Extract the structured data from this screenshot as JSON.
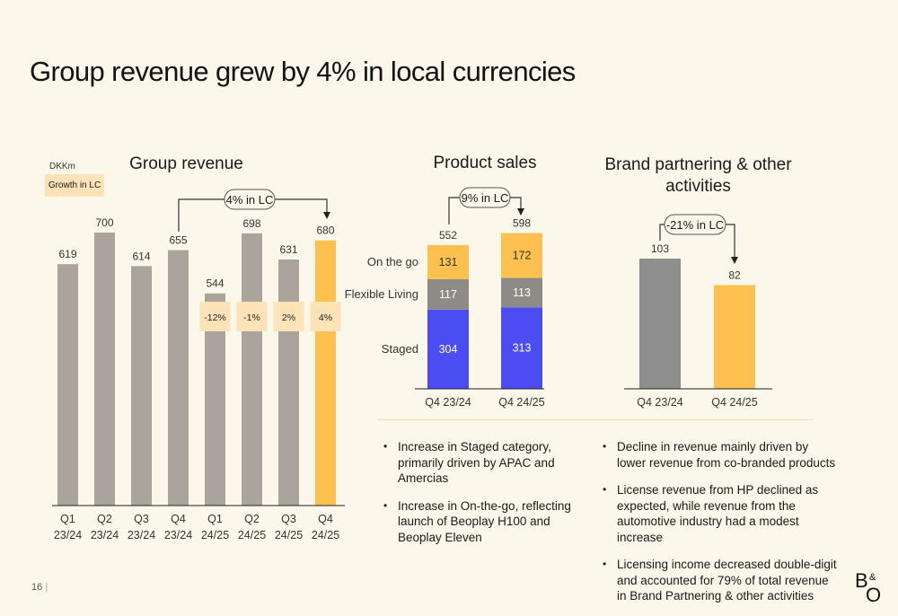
{
  "page": {
    "title": "Group revenue grew by 4% in local currencies",
    "page_number": "16",
    "page_separator": "|"
  },
  "colors": {
    "background": "#fbf7ea",
    "grey_bar": "#aaa49c",
    "highlight": "#fec14f",
    "growth_box": "#fde3b7",
    "staged": "#4b4cf1",
    "flexible_living": "#8e8b86",
    "on_the_go": "#fec14f",
    "bp_grey": "#8e8e8e"
  },
  "group_revenue": {
    "title": "Group revenue",
    "unit": "DKKm",
    "legend": "Growth in LC",
    "annotation": "4% in LC"
  },
  "product_sales": {
    "title": "Product sales",
    "annotation": "9% in LC"
  },
  "brand_partnering": {
    "title_line1": "Brand partnering & other",
    "title_line2": "activities",
    "annotation": "-21% in LC"
  },
  "bullets_left": [
    "Increase in Staged category, primarily driven by APAC and Amercias",
    "Increase in On-the-go, reflecting launch of Beoplay H100 and Beoplay Eleven"
  ],
  "bullets_right": [
    "Decline in revenue mainly driven by lower revenue from co-branded products",
    "License revenue from HP declined as expected, while revenue from the automotive industry had a modest increase",
    "Licensing income decreased double-digit and accounted for 79% of total revenue in Brand Partnering & other activities"
  ],
  "chart_data": [
    {
      "type": "bar",
      "title": "Group revenue",
      "unit": "DKKm",
      "categories": [
        [
          "Q1",
          "23/24"
        ],
        [
          "Q2",
          "23/24"
        ],
        [
          "Q3",
          "23/24"
        ],
        [
          "Q4",
          "23/24"
        ],
        [
          "Q1",
          "24/25"
        ],
        [
          "Q2",
          "24/25"
        ],
        [
          "Q3",
          "24/25"
        ],
        [
          "Q4",
          "24/25"
        ]
      ],
      "values": [
        619,
        700,
        614,
        655,
        544,
        698,
        631,
        680
      ],
      "growth_in_lc": [
        null,
        null,
        null,
        null,
        "-12%",
        "-1%",
        "2%",
        "4%"
      ],
      "highlight_index": 7,
      "ylim": [
        0,
        720
      ]
    },
    {
      "type": "bar",
      "stacked": true,
      "title": "Product sales",
      "categories": [
        "Q4 23/24",
        "Q4 24/25"
      ],
      "totals": [
        552,
        598
      ],
      "series": [
        {
          "name": "Staged",
          "values": [
            304,
            313
          ]
        },
        {
          "name": "Flexible Living",
          "values": [
            117,
            113
          ]
        },
        {
          "name": "On the go",
          "values": [
            131,
            172
          ]
        }
      ]
    },
    {
      "type": "bar",
      "title": "Brand partnering & other activities",
      "categories": [
        "Q4 23/24",
        "Q4 24/25"
      ],
      "values": [
        103,
        82
      ]
    }
  ]
}
